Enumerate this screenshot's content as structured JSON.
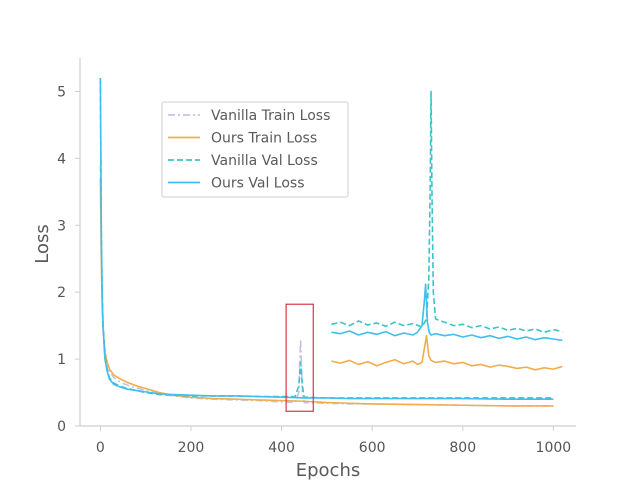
{
  "chart_data": {
    "type": "line",
    "title": "",
    "xlabel": "Epochs",
    "ylabel": "Loss",
    "xlim": [
      -45,
      1050
    ],
    "ylim": [
      0,
      5.5
    ],
    "x_ticks": [
      0,
      200,
      400,
      600,
      800,
      1000
    ],
    "y_ticks": [
      0,
      1,
      2,
      3,
      4,
      5
    ],
    "grid": false,
    "legend_position": "upper-left",
    "series": [
      {
        "name": "Vanilla Train Loss",
        "color": "#c5c3e6",
        "style": "dashdot",
        "x": [
          0,
          2,
          4,
          6,
          10,
          15,
          20,
          30,
          45,
          60,
          80,
          100,
          130,
          160,
          200,
          250,
          300,
          350,
          400,
          430,
          438,
          442,
          446,
          450,
          500,
          550,
          600,
          700,
          800,
          900,
          1000
        ],
        "y": [
          3.9,
          2.6,
          1.9,
          1.5,
          1.15,
          0.95,
          0.82,
          0.72,
          0.65,
          0.61,
          0.57,
          0.53,
          0.48,
          0.45,
          0.42,
          0.4,
          0.39,
          0.38,
          0.36,
          0.35,
          0.5,
          1.3,
          0.5,
          0.35,
          0.34,
          0.33,
          0.33,
          0.32,
          0.31,
          0.3,
          0.3
        ]
      },
      {
        "name": "Ours Train Loss",
        "color": "#f0ad4e",
        "style": "solid",
        "x": [
          0,
          2,
          4,
          6,
          10,
          15,
          20,
          30,
          45,
          60,
          80,
          100,
          130,
          160,
          200,
          250,
          300,
          350,
          400,
          450,
          500,
          550,
          600,
          700,
          800,
          900,
          1000
        ],
        "y": [
          3.7,
          2.5,
          1.8,
          1.45,
          1.1,
          0.95,
          0.85,
          0.76,
          0.7,
          0.65,
          0.6,
          0.56,
          0.5,
          0.46,
          0.43,
          0.41,
          0.4,
          0.39,
          0.38,
          0.37,
          0.35,
          0.34,
          0.33,
          0.32,
          0.31,
          0.3,
          0.3
        ],
        "x2": [
          510,
          530,
          550,
          570,
          590,
          610,
          630,
          650,
          670,
          690,
          700,
          710,
          715,
          720,
          725,
          730,
          740,
          760,
          780,
          800,
          820,
          840,
          860,
          880,
          900,
          920,
          940,
          960,
          980,
          1000,
          1020
        ],
        "y2": [
          0.97,
          0.94,
          0.98,
          0.92,
          0.96,
          0.9,
          0.95,
          0.99,
          0.93,
          0.97,
          0.92,
          0.95,
          1.15,
          1.35,
          1.05,
          0.98,
          0.95,
          0.97,
          0.93,
          0.95,
          0.9,
          0.92,
          0.88,
          0.91,
          0.89,
          0.86,
          0.88,
          0.84,
          0.87,
          0.85,
          0.89
        ]
      },
      {
        "name": "Vanilla Val Loss",
        "color": "#3cc3c8",
        "style": "dashed",
        "x": [
          0,
          2,
          4,
          6,
          10,
          15,
          20,
          30,
          45,
          60,
          80,
          100,
          130,
          160,
          200,
          250,
          300,
          350,
          400,
          430,
          438,
          442,
          446,
          450,
          500,
          550,
          600,
          700,
          800,
          900,
          1000
        ],
        "y": [
          5.2,
          3.0,
          2.0,
          1.5,
          1.05,
          0.85,
          0.72,
          0.64,
          0.59,
          0.56,
          0.53,
          0.5,
          0.47,
          0.46,
          0.45,
          0.45,
          0.45,
          0.44,
          0.44,
          0.44,
          0.6,
          0.95,
          0.6,
          0.43,
          0.42,
          0.42,
          0.42,
          0.42,
          0.42,
          0.42,
          0.42
        ],
        "x2": [
          510,
          530,
          550,
          570,
          590,
          610,
          630,
          650,
          670,
          690,
          710,
          720,
          725,
          728,
          730,
          732,
          735,
          740,
          760,
          780,
          800,
          820,
          840,
          860,
          880,
          900,
          920,
          940,
          960,
          980,
          1000,
          1020
        ],
        "y2": [
          1.52,
          1.55,
          1.5,
          1.57,
          1.51,
          1.54,
          1.49,
          1.55,
          1.5,
          1.53,
          1.48,
          1.6,
          2.2,
          3.5,
          5.0,
          3.5,
          2.0,
          1.6,
          1.55,
          1.5,
          1.52,
          1.47,
          1.5,
          1.45,
          1.48,
          1.43,
          1.46,
          1.42,
          1.45,
          1.4,
          1.44,
          1.41
        ]
      },
      {
        "name": "Ours Val Loss",
        "color": "#3fbfee",
        "style": "solid",
        "x": [
          0,
          2,
          4,
          6,
          10,
          15,
          20,
          30,
          45,
          60,
          80,
          100,
          130,
          160,
          200,
          250,
          300,
          350,
          400,
          450,
          500,
          550,
          600,
          700,
          800,
          900,
          1000
        ],
        "y": [
          5.2,
          2.9,
          1.9,
          1.45,
          1.0,
          0.82,
          0.7,
          0.62,
          0.58,
          0.55,
          0.53,
          0.51,
          0.48,
          0.47,
          0.46,
          0.45,
          0.45,
          0.44,
          0.43,
          0.42,
          0.42,
          0.41,
          0.41,
          0.41,
          0.41,
          0.4,
          0.4
        ],
        "x2": [
          510,
          530,
          550,
          570,
          590,
          610,
          630,
          650,
          670,
          690,
          700,
          710,
          715,
          718,
          722,
          726,
          730,
          740,
          760,
          780,
          800,
          820,
          840,
          860,
          880,
          900,
          920,
          940,
          960,
          980,
          1000,
          1020
        ],
        "y2": [
          1.4,
          1.38,
          1.42,
          1.36,
          1.4,
          1.37,
          1.41,
          1.35,
          1.39,
          1.36,
          1.4,
          1.5,
          1.85,
          2.12,
          1.55,
          1.4,
          1.36,
          1.38,
          1.35,
          1.37,
          1.33,
          1.36,
          1.32,
          1.35,
          1.31,
          1.34,
          1.3,
          1.33,
          1.29,
          1.32,
          1.3,
          1.28
        ]
      }
    ],
    "annotations": [
      {
        "type": "box",
        "label": "highlight-spike",
        "x_range": [
          410,
          470
        ],
        "y_range": [
          0.22,
          1.82
        ],
        "color": "#d9363e"
      }
    ]
  }
}
